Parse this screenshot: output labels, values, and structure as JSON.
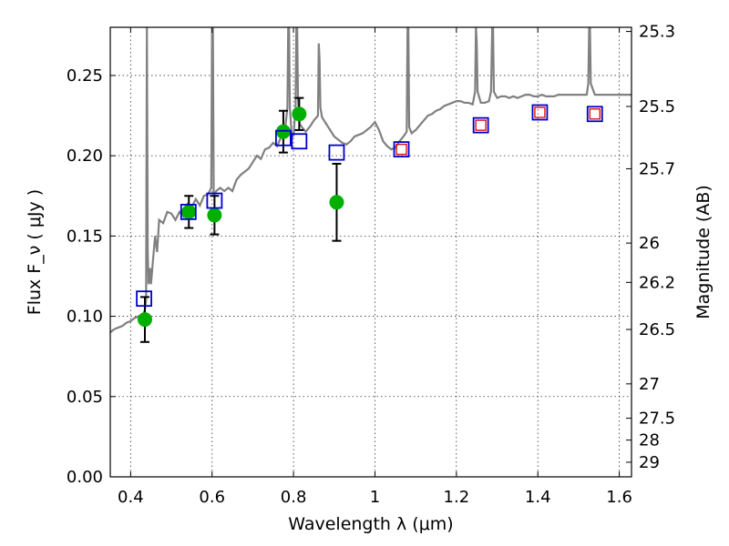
{
  "chart_data": {
    "type": "scatter",
    "title": "",
    "xlabel": "Wavelength λ (μm)",
    "ylabel": "Flux F_ν ( μJy )",
    "ylabel_right": "Magnitude (AB)",
    "xlim": [
      0.35,
      1.63
    ],
    "ylim": [
      0.0,
      0.28
    ],
    "grid": true,
    "x_ticks": [
      0.4,
      0.6,
      0.8,
      1.0,
      1.2,
      1.4,
      1.6
    ],
    "x_tick_labels": [
      "0.4",
      "0.6",
      "0.8",
      "1",
      "1.2",
      "1.4",
      "1.6"
    ],
    "y_ticks": [
      0.0,
      0.05,
      0.1,
      0.15,
      0.2,
      0.25
    ],
    "y_tick_labels": [
      "0.00",
      "0.05",
      "0.10",
      "0.15",
      "0.20",
      "0.25"
    ],
    "right_ticks": [
      {
        "label": "25.3",
        "flux": 0.2774
      },
      {
        "label": "25.5",
        "flux": 0.2307
      },
      {
        "label": "25.7",
        "flux": 0.1919
      },
      {
        "label": "26",
        "flux": 0.1456
      },
      {
        "label": "26.2",
        "flux": 0.1211
      },
      {
        "label": "26.5",
        "flux": 0.0918
      },
      {
        "label": "27",
        "flux": 0.0579
      },
      {
        "label": "27.5",
        "flux": 0.0365
      },
      {
        "label": "28",
        "flux": 0.0229
      },
      {
        "label": "29",
        "flux": 0.0091
      }
    ],
    "series": [
      {
        "name": "SED model",
        "kind": "line",
        "color": "#808080",
        "x": [
          0.35,
          0.36,
          0.37,
          0.38,
          0.39,
          0.4,
          0.41,
          0.42,
          0.43,
          0.435,
          0.438,
          0.44,
          0.442,
          0.444,
          0.446,
          0.448,
          0.45,
          0.455,
          0.46,
          0.465,
          0.47,
          0.48,
          0.49,
          0.5,
          0.51,
          0.52,
          0.53,
          0.54,
          0.55,
          0.56,
          0.57,
          0.58,
          0.59,
          0.598,
          0.6,
          0.602,
          0.604,
          0.61,
          0.62,
          0.63,
          0.64,
          0.65,
          0.66,
          0.67,
          0.68,
          0.69,
          0.7,
          0.71,
          0.72,
          0.73,
          0.74,
          0.75,
          0.76,
          0.77,
          0.78,
          0.785,
          0.787,
          0.789,
          0.791,
          0.795,
          0.8,
          0.805,
          0.807,
          0.809,
          0.811,
          0.815,
          0.82,
          0.83,
          0.84,
          0.85,
          0.86,
          0.862,
          0.864,
          0.866,
          0.87,
          0.88,
          0.89,
          0.9,
          0.91,
          0.92,
          0.93,
          0.94,
          0.95,
          0.96,
          0.97,
          0.98,
          0.99,
          1.0,
          1.01,
          1.02,
          1.03,
          1.04,
          1.05,
          1.06,
          1.07,
          1.078,
          1.08,
          1.082,
          1.084,
          1.09,
          1.1,
          1.11,
          1.12,
          1.13,
          1.14,
          1.15,
          1.16,
          1.17,
          1.18,
          1.19,
          1.2,
          1.21,
          1.22,
          1.23,
          1.24,
          1.246,
          1.248,
          1.25,
          1.252,
          1.26,
          1.27,
          1.28,
          1.285,
          1.288,
          1.29,
          1.292,
          1.3,
          1.31,
          1.32,
          1.33,
          1.34,
          1.35,
          1.36,
          1.37,
          1.38,
          1.39,
          1.4,
          1.41,
          1.42,
          1.43,
          1.44,
          1.45,
          1.46,
          1.47,
          1.48,
          1.49,
          1.5,
          1.51,
          1.52,
          1.524,
          1.526,
          1.528,
          1.53,
          1.54,
          1.55,
          1.56,
          1.57,
          1.58,
          1.59,
          1.6,
          1.61,
          1.62,
          1.63
        ],
        "y": [
          0.09,
          0.092,
          0.093,
          0.094,
          0.096,
          0.097,
          0.099,
          0.1,
          0.101,
          0.104,
          0.11,
          0.28,
          0.14,
          0.12,
          0.125,
          0.13,
          0.12,
          0.135,
          0.15,
          0.14,
          0.16,
          0.158,
          0.165,
          0.164,
          0.16,
          0.165,
          0.162,
          0.17,
          0.168,
          0.173,
          0.169,
          0.175,
          0.176,
          0.18,
          0.28,
          0.28,
          0.175,
          0.178,
          0.18,
          0.178,
          0.18,
          0.178,
          0.185,
          0.188,
          0.19,
          0.192,
          0.196,
          0.2,
          0.198,
          0.204,
          0.205,
          0.208,
          0.206,
          0.212,
          0.218,
          0.23,
          0.28,
          0.28,
          0.23,
          0.215,
          0.212,
          0.23,
          0.28,
          0.28,
          0.235,
          0.22,
          0.218,
          0.215,
          0.218,
          0.222,
          0.225,
          0.27,
          0.26,
          0.23,
          0.224,
          0.22,
          0.216,
          0.212,
          0.21,
          0.208,
          0.207,
          0.209,
          0.212,
          0.213,
          0.214,
          0.216,
          0.218,
          0.221,
          0.216,
          0.209,
          0.206,
          0.204,
          0.205,
          0.209,
          0.212,
          0.215,
          0.28,
          0.28,
          0.218,
          0.214,
          0.216,
          0.219,
          0.222,
          0.225,
          0.226,
          0.228,
          0.229,
          0.231,
          0.232,
          0.233,
          0.234,
          0.234,
          0.233,
          0.233,
          0.232,
          0.24,
          0.28,
          0.27,
          0.24,
          0.233,
          0.233,
          0.234,
          0.24,
          0.28,
          0.28,
          0.24,
          0.236,
          0.237,
          0.237,
          0.236,
          0.237,
          0.236,
          0.237,
          0.238,
          0.238,
          0.237,
          0.237,
          0.238,
          0.237,
          0.237,
          0.237,
          0.238,
          0.238,
          0.238,
          0.238,
          0.238,
          0.238,
          0.238,
          0.238,
          0.245,
          0.28,
          0.28,
          0.245,
          0.238,
          0.238,
          0.238,
          0.238,
          0.238,
          0.238,
          0.238,
          0.238,
          0.238,
          0.238
        ]
      },
      {
        "name": "Model photometry",
        "kind": "open-square",
        "color": "#0000cc",
        "x": [
          0.433,
          0.542,
          0.606,
          0.775,
          0.814,
          0.906,
          1.065,
          1.26,
          1.405,
          1.54
        ],
        "y": [
          0.111,
          0.165,
          0.172,
          0.211,
          0.209,
          0.202,
          0.204,
          0.219,
          0.227,
          0.226
        ]
      },
      {
        "name": "Observed flux",
        "kind": "filled-circle",
        "color": "#00b000",
        "x": [
          0.435,
          0.543,
          0.606,
          0.775,
          0.814,
          0.906
        ],
        "y": [
          0.098,
          0.165,
          0.163,
          0.215,
          0.226,
          0.171
        ],
        "err": [
          0.014,
          0.01,
          0.012,
          0.013,
          0.01,
          0.024
        ]
      },
      {
        "name": "Upper limits",
        "kind": "small-red-square",
        "color": "#dd0000",
        "x": [
          1.065,
          1.26,
          1.405,
          1.54
        ],
        "y": [
          0.204,
          0.219,
          0.227,
          0.226
        ]
      }
    ]
  }
}
